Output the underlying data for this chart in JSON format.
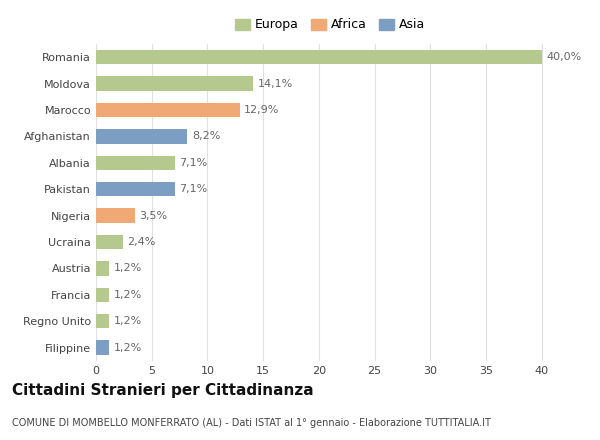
{
  "countries": [
    "Romania",
    "Moldova",
    "Marocco",
    "Afghanistan",
    "Albania",
    "Pakistan",
    "Nigeria",
    "Ucraina",
    "Austria",
    "Francia",
    "Regno Unito",
    "Filippine"
  ],
  "values": [
    40.0,
    14.1,
    12.9,
    8.2,
    7.1,
    7.1,
    3.5,
    2.4,
    1.2,
    1.2,
    1.2,
    1.2
  ],
  "labels": [
    "40,0%",
    "14,1%",
    "12,9%",
    "8,2%",
    "7,1%",
    "7,1%",
    "3,5%",
    "2,4%",
    "1,2%",
    "1,2%",
    "1,2%",
    "1,2%"
  ],
  "continents": [
    "Europa",
    "Europa",
    "Africa",
    "Asia",
    "Europa",
    "Asia",
    "Africa",
    "Europa",
    "Europa",
    "Europa",
    "Europa",
    "Asia"
  ],
  "colors": {
    "Europa": "#b5c98e",
    "Africa": "#f0a875",
    "Asia": "#7b9ec2"
  },
  "legend_labels": [
    "Europa",
    "Africa",
    "Asia"
  ],
  "xlim": [
    0,
    42
  ],
  "xticks": [
    0,
    5,
    10,
    15,
    20,
    25,
    30,
    35,
    40
  ],
  "title": "Cittadini Stranieri per Cittadinanza",
  "subtitle": "COMUNE DI MOMBELLO MONFERRATO (AL) - Dati ISTAT al 1° gennaio - Elaborazione TUTTITALIA.IT",
  "background_color": "#ffffff",
  "grid_color": "#e0e0e0",
  "bar_height": 0.55,
  "label_fontsize": 8,
  "title_fontsize": 11,
  "subtitle_fontsize": 7,
  "tick_fontsize": 8,
  "legend_fontsize": 9
}
